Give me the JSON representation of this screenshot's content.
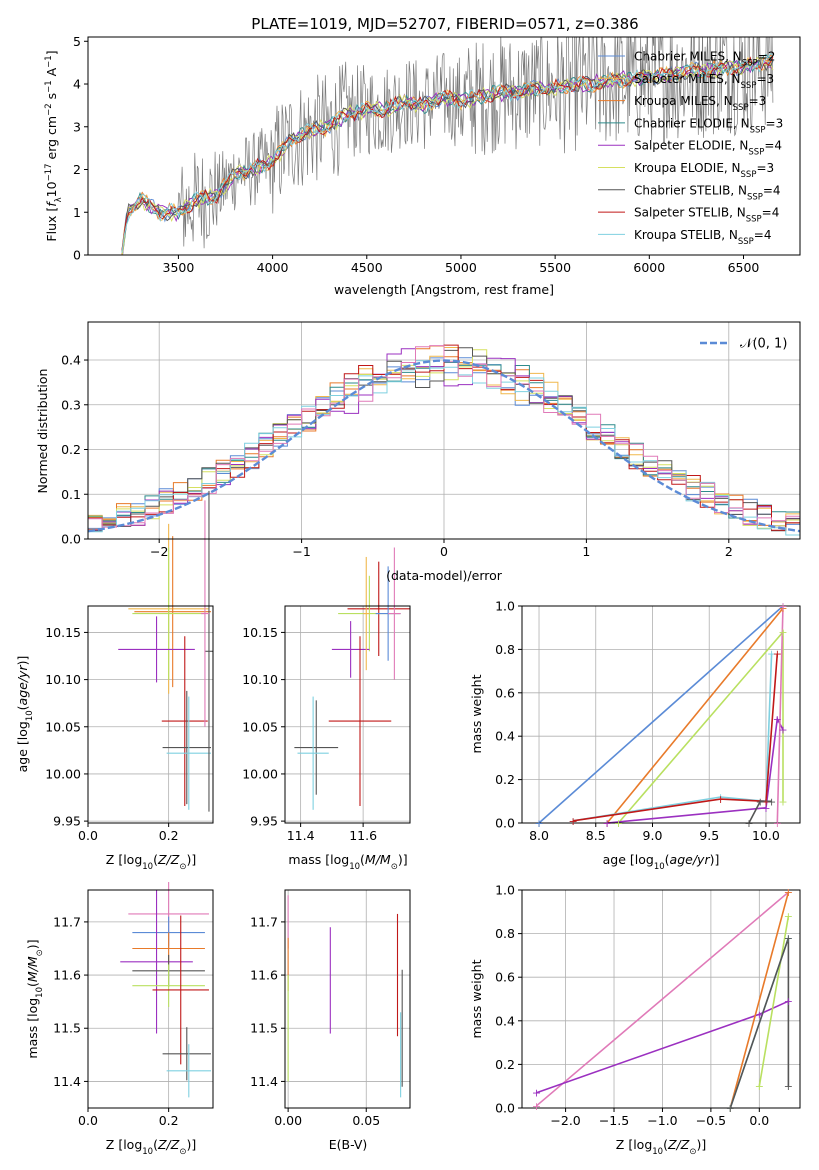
{
  "figure_title": "PLATE=1019, MJD=52707, FIBERID=0571, z=0.386",
  "colors": {
    "chabrier_miles": "#5b8bd6",
    "salpeter_miles": "#f0b84d",
    "kroupa_miles": "#e87a2a",
    "chabrier_elodie": "#2e8b8b",
    "salpeter_elodie": "#9b30c0",
    "kroupa_elodie": "#d6e060",
    "chabrier_stelib": "#555555",
    "salpeter_stelib": "#c01818",
    "kroupa_stelib": "#7fd0e0",
    "pink": "#e07ab8",
    "lime": "#b9e060",
    "data_spectrum": "#7a7a7a",
    "normal_curve": "#5b8bd6"
  },
  "chart_data": [
    {
      "type": "line",
      "panel": "spectrum",
      "title": "PLATE=1019, MJD=52707, FIBERID=0571, z=0.386",
      "xlabel": "wavelength [Angstrom, rest frame]",
      "ylabel": "Flux [f_λ 10^-17 erg cm^-2 s^-1 A^-1]",
      "xlim": [
        3020,
        6800
      ],
      "ylim": [
        0,
        5.1
      ],
      "xticks": [
        "3500",
        "4000",
        "4500",
        "5000",
        "5500",
        "6000",
        "6500"
      ],
      "yticks": [
        "0",
        "1",
        "2",
        "3",
        "4",
        "5"
      ],
      "legend_position": "right",
      "legend": [
        {
          "label": "Chabrier MILES, N",
          "sub": "SSP",
          "suffix": "=2",
          "color": "#5b8bd6"
        },
        {
          "label": "Salpeter MILES, N",
          "sub": "SSP",
          "suffix": "=3",
          "color": "#f0b84d"
        },
        {
          "label": "Kroupa MILES, N",
          "sub": "SSP",
          "suffix": "=3",
          "color": "#e87a2a"
        },
        {
          "label": "Chabrier ELODIE, N",
          "sub": "SSP",
          "suffix": "=3",
          "color": "#2e8b8b"
        },
        {
          "label": "Salpeter ELODIE, N",
          "sub": "SSP",
          "suffix": "=4",
          "color": "#9b30c0"
        },
        {
          "label": "Kroupa ELODIE, N",
          "sub": "SSP",
          "suffix": "=3",
          "color": "#d6e060"
        },
        {
          "label": "Chabrier STELIB, N",
          "sub": "SSP",
          "suffix": "=4",
          "color": "#555555"
        },
        {
          "label": "Salpeter STELIB, N",
          "sub": "SSP",
          "suffix": "=4",
          "color": "#c01818"
        },
        {
          "label": "Kroupa STELIB, N",
          "sub": "SSP",
          "suffix": "=4",
          "color": "#7fd0e0"
        }
      ],
      "model_continuum": {
        "x": [
          3200,
          3230,
          3300,
          3400,
          3500,
          3600,
          3700,
          3800,
          3900,
          4000,
          4100,
          4200,
          4300,
          4400,
          4500,
          4600,
          4700,
          4800,
          4900,
          5000,
          5100,
          5200,
          5300,
          5400,
          5500,
          5600,
          5700,
          5800,
          5900,
          6000,
          6100,
          6200,
          6300,
          6400,
          6500,
          6600,
          6650
        ],
        "y": [
          0.0,
          1.0,
          1.3,
          1.0,
          1.0,
          1.3,
          1.4,
          1.9,
          2.0,
          2.2,
          2.7,
          2.9,
          3.0,
          3.3,
          3.4,
          3.4,
          3.6,
          3.5,
          3.7,
          3.6,
          3.7,
          3.8,
          3.8,
          3.9,
          3.9,
          4.0,
          4.0,
          4.1,
          4.1,
          4.2,
          4.2,
          4.3,
          4.3,
          4.4,
          4.4,
          4.5,
          4.5
        ]
      }
    },
    {
      "type": "bar",
      "panel": "residual-histogram",
      "xlabel": "(data-model)/error",
      "ylabel": "Normed distribution",
      "xlim": [
        -2.5,
        2.5
      ],
      "ylim": [
        0,
        0.485
      ],
      "xticks": [
        "−2",
        "−1",
        "0",
        "1",
        "2"
      ],
      "yticks": [
        "0.0",
        "0.1",
        "0.2",
        "0.3",
        "0.4"
      ],
      "legend_position": "top-right",
      "normal_label": "𝒩(0, 1)",
      "bin_start": -2.5,
      "bin_width": 0.1
    },
    {
      "type": "scatter",
      "panel": "age-vs-Z",
      "xlabel": "Z [log10(Z/Z⊙)]",
      "ylabel": "age  [log10(age/yr)]",
      "xlim": [
        0.0,
        0.31
      ],
      "ylim": [
        9.948,
        10.178
      ],
      "xticks": [
        "0.0",
        "0.2"
      ],
      "yticks": [
        "9.95",
        "10.00",
        "10.05",
        "10.10",
        "10.15"
      ]
    },
    {
      "type": "scatter",
      "panel": "age-vs-mass",
      "xlabel": "mass [log10(M/M⊙)]",
      "ylabel": "",
      "xlim": [
        11.35,
        11.75
      ],
      "ylim": [
        9.948,
        10.178
      ],
      "xticks": [
        "11.4",
        "11.6"
      ],
      "yticks": [
        "9.95",
        "10.00",
        "10.05",
        "10.10",
        "10.15"
      ]
    },
    {
      "type": "line",
      "panel": "mass-weight-vs-age",
      "xlabel": "age  [log10(age/yr)]",
      "ylabel": "mass weight",
      "xlim": [
        7.85,
        10.3
      ],
      "ylim": [
        0,
        1
      ],
      "xticks": [
        "8.0",
        "8.5",
        "9.0",
        "9.5",
        "10.0"
      ],
      "yticks": [
        "0.0",
        "0.2",
        "0.4",
        "0.6",
        "0.8",
        "1.0"
      ]
    },
    {
      "type": "scatter",
      "panel": "mass-vs-Z",
      "xlabel": "Z [log10(Z/Z⊙)]",
      "ylabel": "mass [log10(M/M⊙)]",
      "xlim": [
        0.0,
        0.31
      ],
      "ylim": [
        11.35,
        11.76
      ],
      "xticks": [
        "0.0",
        "0.2"
      ],
      "yticks": [
        "11.4",
        "11.5",
        "11.6",
        "11.7"
      ]
    },
    {
      "type": "scatter",
      "panel": "mass-vs-EBV",
      "xlabel": "E(B-V)",
      "ylabel": "",
      "xlim": [
        -0.002,
        0.078
      ],
      "ylim": [
        11.35,
        11.76
      ],
      "xticks": [
        "0.00",
        "0.05"
      ],
      "yticks": [
        "11.4",
        "11.5",
        "11.6",
        "11.7"
      ]
    },
    {
      "type": "line",
      "panel": "mass-weight-vs-Z",
      "xlabel": "Z [log10(Z/Z⊙)]",
      "ylabel": "mass weight",
      "xlim": [
        -2.45,
        0.42
      ],
      "ylim": [
        0,
        1
      ],
      "xticks": [
        "−2.0",
        "−1.5",
        "−1.0",
        "−0.5",
        "0.0"
      ],
      "yticks": [
        "0.0",
        "0.2",
        "0.4",
        "0.6",
        "0.8",
        "1.0"
      ]
    }
  ]
}
